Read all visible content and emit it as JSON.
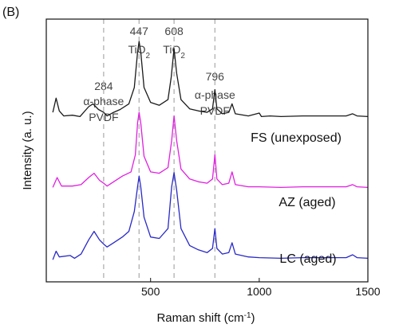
{
  "panel_label": "(B)",
  "chart_data": {
    "type": "line",
    "xlabel": "Raman shift (cm",
    "xlabel_sup": "-1",
    "xlabel_tail": ")",
    "ylabel": "Intensity (a. u.)",
    "xlim": [
      20,
      1500
    ],
    "xticks": [
      500,
      1000,
      1500
    ],
    "stacked_offset": true,
    "grid": false,
    "reference_lines": [
      {
        "x": 284,
        "lines": [
          "284",
          "α-phase",
          "PVDF"
        ]
      },
      {
        "x": 447,
        "lines": [
          "447",
          "TiO",
          "2"
        ]
      },
      {
        "x": 608,
        "lines": [
          "608",
          "TiO",
          "2"
        ]
      },
      {
        "x": 796,
        "lines": [
          "796",
          "α-phase",
          "PVDF"
        ]
      }
    ],
    "series": [
      {
        "name": "FS (unexposed)",
        "color": "#1a1a1a",
        "offset": 2.0,
        "points": [
          [
            50,
            0.1
          ],
          [
            65,
            0.3
          ],
          [
            80,
            0.12
          ],
          [
            100,
            0.05
          ],
          [
            140,
            0.06
          ],
          [
            175,
            0.04
          ],
          [
            215,
            0.18
          ],
          [
            235,
            0.22
          ],
          [
            260,
            0.14
          ],
          [
            284,
            0.1
          ],
          [
            300,
            0.05
          ],
          [
            330,
            0.1
          ],
          [
            360,
            0.14
          ],
          [
            400,
            0.22
          ],
          [
            425,
            0.45
          ],
          [
            440,
            0.95
          ],
          [
            447,
            1.1
          ],
          [
            455,
            0.95
          ],
          [
            470,
            0.45
          ],
          [
            500,
            0.24
          ],
          [
            540,
            0.2
          ],
          [
            580,
            0.28
          ],
          [
            595,
            0.6
          ],
          [
            608,
            1.0
          ],
          [
            620,
            0.65
          ],
          [
            640,
            0.28
          ],
          [
            680,
            0.15
          ],
          [
            720,
            0.12
          ],
          [
            760,
            0.1
          ],
          [
            785,
            0.15
          ],
          [
            796,
            0.42
          ],
          [
            805,
            0.15
          ],
          [
            830,
            0.08
          ],
          [
            860,
            0.1
          ],
          [
            875,
            0.22
          ],
          [
            890,
            0.08
          ],
          [
            950,
            0.05
          ],
          [
            1000,
            0.09
          ],
          [
            1010,
            0.04
          ],
          [
            1050,
            0.05
          ],
          [
            1100,
            0.04
          ],
          [
            1200,
            0.05
          ],
          [
            1300,
            0.05
          ],
          [
            1400,
            0.05
          ],
          [
            1430,
            0.08
          ],
          [
            1450,
            0.05
          ],
          [
            1500,
            0.04
          ]
        ]
      },
      {
        "name": "AZ (aged)",
        "color": "#e020e0",
        "offset": 1.0,
        "points": [
          [
            50,
            0.04
          ],
          [
            70,
            0.18
          ],
          [
            90,
            0.06
          ],
          [
            140,
            0.06
          ],
          [
            180,
            0.08
          ],
          [
            215,
            0.18
          ],
          [
            240,
            0.24
          ],
          [
            265,
            0.14
          ],
          [
            284,
            0.1
          ],
          [
            300,
            0.06
          ],
          [
            330,
            0.12
          ],
          [
            370,
            0.2
          ],
          [
            410,
            0.26
          ],
          [
            430,
            0.5
          ],
          [
            440,
            0.95
          ],
          [
            447,
            1.1
          ],
          [
            455,
            0.95
          ],
          [
            470,
            0.48
          ],
          [
            500,
            0.26
          ],
          [
            540,
            0.24
          ],
          [
            580,
            0.32
          ],
          [
            597,
            0.7
          ],
          [
            608,
            1.05
          ],
          [
            620,
            0.7
          ],
          [
            640,
            0.3
          ],
          [
            680,
            0.16
          ],
          [
            720,
            0.12
          ],
          [
            760,
            0.1
          ],
          [
            785,
            0.16
          ],
          [
            796,
            0.5
          ],
          [
            805,
            0.16
          ],
          [
            830,
            0.08
          ],
          [
            860,
            0.1
          ],
          [
            875,
            0.26
          ],
          [
            890,
            0.08
          ],
          [
            950,
            0.05
          ],
          [
            1000,
            0.05
          ],
          [
            1100,
            0.04
          ],
          [
            1200,
            0.05
          ],
          [
            1300,
            0.05
          ],
          [
            1400,
            0.05
          ],
          [
            1430,
            0.08
          ],
          [
            1450,
            0.05
          ],
          [
            1500,
            0.04
          ]
        ]
      },
      {
        "name": "LC (aged)",
        "color": "#2929c8",
        "offset": 0.0,
        "points": [
          [
            50,
            0.02
          ],
          [
            65,
            0.14
          ],
          [
            80,
            0.06
          ],
          [
            130,
            0.08
          ],
          [
            150,
            0.04
          ],
          [
            180,
            0.1
          ],
          [
            215,
            0.3
          ],
          [
            240,
            0.42
          ],
          [
            265,
            0.3
          ],
          [
            284,
            0.24
          ],
          [
            300,
            0.2
          ],
          [
            330,
            0.26
          ],
          [
            370,
            0.34
          ],
          [
            400,
            0.42
          ],
          [
            425,
            0.7
          ],
          [
            440,
            1.05
          ],
          [
            447,
            1.2
          ],
          [
            455,
            1.05
          ],
          [
            470,
            0.62
          ],
          [
            500,
            0.34
          ],
          [
            540,
            0.32
          ],
          [
            580,
            0.46
          ],
          [
            597,
            1.05
          ],
          [
            608,
            1.25
          ],
          [
            620,
            1.0
          ],
          [
            640,
            0.46
          ],
          [
            680,
            0.22
          ],
          [
            720,
            0.16
          ],
          [
            760,
            0.12
          ],
          [
            785,
            0.18
          ],
          [
            796,
            0.46
          ],
          [
            805,
            0.18
          ],
          [
            830,
            0.1
          ],
          [
            860,
            0.12
          ],
          [
            875,
            0.26
          ],
          [
            890,
            0.1
          ],
          [
            950,
            0.06
          ],
          [
            1000,
            0.05
          ],
          [
            1100,
            0.04
          ],
          [
            1200,
            0.05
          ],
          [
            1300,
            0.05
          ],
          [
            1400,
            0.05
          ],
          [
            1430,
            0.09
          ],
          [
            1450,
            0.05
          ],
          [
            1500,
            0.04
          ]
        ]
      }
    ]
  }
}
